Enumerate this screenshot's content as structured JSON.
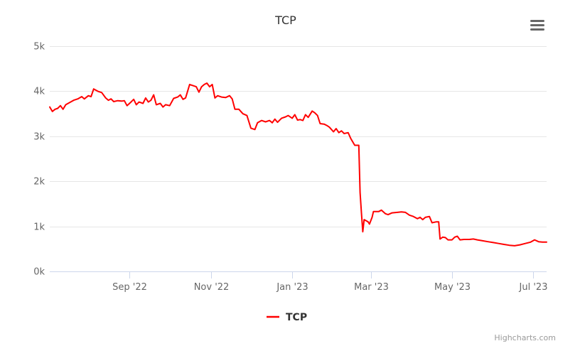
{
  "chart_data": {
    "type": "line",
    "title": "TCP",
    "xlabel": "",
    "ylabel": "",
    "ylim": [
      0,
      5000
    ],
    "y_ticks": [
      "0k",
      "1k",
      "2k",
      "3k",
      "4k",
      "5k"
    ],
    "x_ticks": [
      "Sep '22",
      "Nov '22",
      "Jan '23",
      "Mar '23",
      "May '23",
      "Jul '23"
    ],
    "x_range": [
      "2022-07-03",
      "2023-07-11"
    ],
    "grid": true,
    "legend": "bottom-center",
    "series": [
      {
        "name": "TCP",
        "color": "#ff0000",
        "points": [
          [
            "2022-07-03",
            3650
          ],
          [
            "2022-07-05",
            3550
          ],
          [
            "2022-07-07",
            3600
          ],
          [
            "2022-07-09",
            3620
          ],
          [
            "2022-07-11",
            3680
          ],
          [
            "2022-07-13",
            3600
          ],
          [
            "2022-07-15",
            3700
          ],
          [
            "2022-07-18",
            3750
          ],
          [
            "2022-07-21",
            3800
          ],
          [
            "2022-07-24",
            3830
          ],
          [
            "2022-07-27",
            3880
          ],
          [
            "2022-07-29",
            3830
          ],
          [
            "2022-08-01",
            3900
          ],
          [
            "2022-08-03",
            3880
          ],
          [
            "2022-08-05",
            4050
          ],
          [
            "2022-08-08",
            4000
          ],
          [
            "2022-08-11",
            3970
          ],
          [
            "2022-08-14",
            3850
          ],
          [
            "2022-08-16",
            3800
          ],
          [
            "2022-08-18",
            3830
          ],
          [
            "2022-08-20",
            3770
          ],
          [
            "2022-08-23",
            3790
          ],
          [
            "2022-08-26",
            3780
          ],
          [
            "2022-08-28",
            3790
          ],
          [
            "2022-08-30",
            3680
          ],
          [
            "2022-09-02",
            3760
          ],
          [
            "2022-09-04",
            3820
          ],
          [
            "2022-09-06",
            3700
          ],
          [
            "2022-09-08",
            3760
          ],
          [
            "2022-09-11",
            3730
          ],
          [
            "2022-09-13",
            3850
          ],
          [
            "2022-09-15",
            3760
          ],
          [
            "2022-09-17",
            3800
          ],
          [
            "2022-09-19",
            3920
          ],
          [
            "2022-09-21",
            3700
          ],
          [
            "2022-09-24",
            3730
          ],
          [
            "2022-09-26",
            3650
          ],
          [
            "2022-09-28",
            3700
          ],
          [
            "2022-10-01",
            3680
          ],
          [
            "2022-10-04",
            3840
          ],
          [
            "2022-10-07",
            3870
          ],
          [
            "2022-10-09",
            3920
          ],
          [
            "2022-10-11",
            3820
          ],
          [
            "2022-10-13",
            3850
          ],
          [
            "2022-10-16",
            4150
          ],
          [
            "2022-10-19",
            4120
          ],
          [
            "2022-10-21",
            4100
          ],
          [
            "2022-10-23",
            3980
          ],
          [
            "2022-10-25",
            4100
          ],
          [
            "2022-10-27",
            4150
          ],
          [
            "2022-10-29",
            4180
          ],
          [
            "2022-10-31",
            4100
          ],
          [
            "2022-11-02",
            4150
          ],
          [
            "2022-11-04",
            3850
          ],
          [
            "2022-11-06",
            3900
          ],
          [
            "2022-11-09",
            3870
          ],
          [
            "2022-11-12",
            3860
          ],
          [
            "2022-11-15",
            3900
          ],
          [
            "2022-11-17",
            3830
          ],
          [
            "2022-11-19",
            3600
          ],
          [
            "2022-11-22",
            3600
          ],
          [
            "2022-11-25",
            3500
          ],
          [
            "2022-11-28",
            3460
          ],
          [
            "2022-12-01",
            3180
          ],
          [
            "2022-12-04",
            3150
          ],
          [
            "2022-12-06",
            3300
          ],
          [
            "2022-12-09",
            3350
          ],
          [
            "2022-12-12",
            3320
          ],
          [
            "2022-12-15",
            3350
          ],
          [
            "2022-12-17",
            3300
          ],
          [
            "2022-12-19",
            3380
          ],
          [
            "2022-12-21",
            3310
          ],
          [
            "2022-12-24",
            3400
          ],
          [
            "2022-12-27",
            3430
          ],
          [
            "2022-12-29",
            3460
          ],
          [
            "2023-01-01",
            3400
          ],
          [
            "2023-01-03",
            3480
          ],
          [
            "2023-01-05",
            3360
          ],
          [
            "2023-01-07",
            3370
          ],
          [
            "2023-01-09",
            3350
          ],
          [
            "2023-01-11",
            3480
          ],
          [
            "2023-01-13",
            3420
          ],
          [
            "2023-01-16",
            3560
          ],
          [
            "2023-01-18",
            3520
          ],
          [
            "2023-01-20",
            3460
          ],
          [
            "2023-01-22",
            3280
          ],
          [
            "2023-01-25",
            3270
          ],
          [
            "2023-01-27",
            3240
          ],
          [
            "2023-01-29",
            3200
          ],
          [
            "2023-02-01",
            3100
          ],
          [
            "2023-02-03",
            3170
          ],
          [
            "2023-02-05",
            3080
          ],
          [
            "2023-02-07",
            3120
          ],
          [
            "2023-02-09",
            3060
          ],
          [
            "2023-02-12",
            3080
          ],
          [
            "2023-02-14",
            2950
          ],
          [
            "2023-02-17",
            2800
          ],
          [
            "2023-02-20",
            2800
          ],
          [
            "2023-02-21",
            1750
          ],
          [
            "2023-02-22",
            1300
          ],
          [
            "2023-02-23",
            880
          ],
          [
            "2023-02-24",
            1150
          ],
          [
            "2023-02-27",
            1100
          ],
          [
            "2023-02-28",
            1050
          ],
          [
            "2023-03-02",
            1200
          ],
          [
            "2023-03-03",
            1330
          ],
          [
            "2023-03-07",
            1330
          ],
          [
            "2023-03-09",
            1360
          ],
          [
            "2023-03-12",
            1280
          ],
          [
            "2023-03-14",
            1260
          ],
          [
            "2023-03-17",
            1300
          ],
          [
            "2023-03-21",
            1310
          ],
          [
            "2023-03-24",
            1320
          ],
          [
            "2023-03-27",
            1310
          ],
          [
            "2023-03-30",
            1250
          ],
          [
            "2023-04-02",
            1220
          ],
          [
            "2023-04-05",
            1170
          ],
          [
            "2023-04-07",
            1200
          ],
          [
            "2023-04-09",
            1150
          ],
          [
            "2023-04-11",
            1200
          ],
          [
            "2023-04-14",
            1220
          ],
          [
            "2023-04-16",
            1080
          ],
          [
            "2023-04-19",
            1100
          ],
          [
            "2023-04-21",
            1100
          ],
          [
            "2023-04-22",
            720
          ],
          [
            "2023-04-24",
            760
          ],
          [
            "2023-04-26",
            750
          ],
          [
            "2023-04-28",
            700
          ],
          [
            "2023-05-01",
            700
          ],
          [
            "2023-05-03",
            760
          ],
          [
            "2023-05-05",
            780
          ],
          [
            "2023-05-07",
            700
          ],
          [
            "2023-05-10",
            710
          ],
          [
            "2023-05-14",
            710
          ],
          [
            "2023-05-17",
            720
          ],
          [
            "2023-05-20",
            700
          ],
          [
            "2023-05-24",
            680
          ],
          [
            "2023-05-28",
            660
          ],
          [
            "2023-06-01",
            640
          ],
          [
            "2023-06-05",
            620
          ],
          [
            "2023-06-09",
            600
          ],
          [
            "2023-06-13",
            580
          ],
          [
            "2023-06-17",
            570
          ],
          [
            "2023-06-21",
            590
          ],
          [
            "2023-06-25",
            620
          ],
          [
            "2023-06-29",
            650
          ],
          [
            "2023-07-02",
            700
          ],
          [
            "2023-07-05",
            660
          ],
          [
            "2023-07-08",
            650
          ],
          [
            "2023-07-11",
            650
          ]
        ]
      }
    ]
  },
  "menu": {
    "icon": "hamburger-menu-icon"
  },
  "credits": "Highcharts.com"
}
